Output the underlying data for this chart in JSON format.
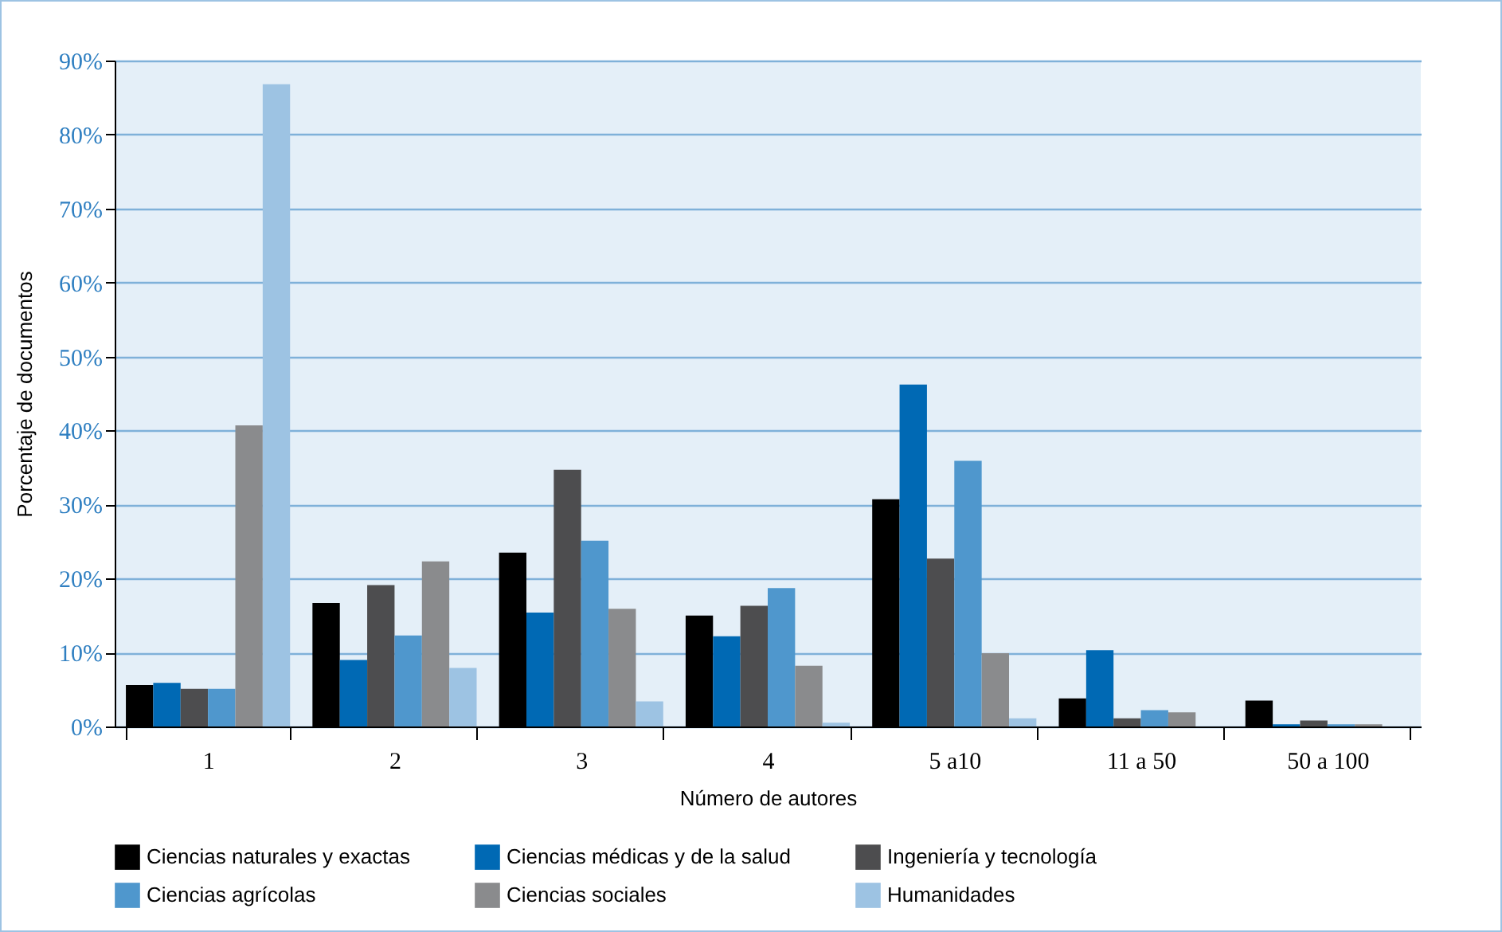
{
  "chart_data": {
    "type": "bar",
    "xlabel": "Número de autores",
    "ylabel": "Porcentaje de documentos",
    "categories": [
      "1",
      "2",
      "3",
      "4",
      "5 a10",
      "11 a 50",
      "50 a 100"
    ],
    "series": [
      {
        "name": "Ciencias naturales y exactas",
        "color": "#000000",
        "values": [
          5.6,
          16.7,
          23.5,
          15.0,
          30.7,
          3.8,
          3.5
        ]
      },
      {
        "name": "Ciencias médicas y de la salud",
        "color": "#0069b4",
        "values": [
          5.9,
          9.0,
          15.4,
          12.2,
          46.2,
          10.3,
          0.3
        ]
      },
      {
        "name": "Ingeniería y tecnología",
        "color": "#4d4d4f",
        "values": [
          5.1,
          19.1,
          34.7,
          16.3,
          22.7,
          1.1,
          0.8
        ]
      },
      {
        "name": "Ciencias agrícolas",
        "color": "#4f97cd",
        "values": [
          5.1,
          12.3,
          25.1,
          18.7,
          35.9,
          2.2,
          0.3
        ]
      },
      {
        "name": "Ciencias sociales",
        "color": "#8a8b8d",
        "values": [
          40.7,
          22.3,
          15.9,
          8.2,
          9.9,
          1.9,
          0.3
        ]
      },
      {
        "name": "Humanidades",
        "color": "#9dc3e3",
        "values": [
          86.8,
          7.9,
          3.4,
          0.5,
          1.1,
          0,
          0
        ]
      }
    ],
    "ylim": [
      0,
      90
    ],
    "yticks": [
      {
        "value": 0,
        "label": "0%"
      },
      {
        "value": 10,
        "label": "10%"
      },
      {
        "value": 20,
        "label": "20%"
      },
      {
        "value": 30,
        "label": "30%"
      },
      {
        "value": 40,
        "label": "40%"
      },
      {
        "value": 50,
        "label": "50%"
      },
      {
        "value": 60,
        "label": "60%"
      },
      {
        "value": 70,
        "label": "70%"
      },
      {
        "value": 80,
        "label": "80%"
      },
      {
        "value": 90,
        "label": "90%"
      }
    ],
    "grid": "y",
    "legend": "bottom"
  }
}
